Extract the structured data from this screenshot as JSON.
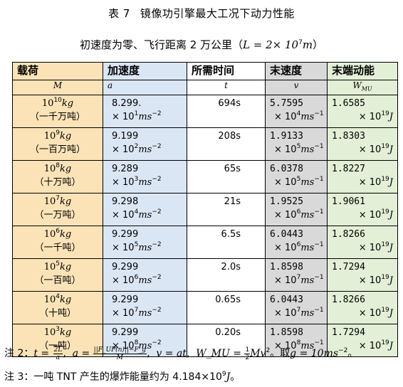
{
  "title": {
    "number": "表 7",
    "text": "镜像功引擎最大工况下动力性能"
  },
  "subtitle": "初速度为零、飞行距离 2 万公里（",
  "subtitle_formula": "L = 2× 10",
  "subtitle_exp": "7",
  "subtitle_unit": "m",
  "subtitle_end": "）",
  "headers": [
    {
      "label": "载荷",
      "symbol": "M"
    },
    {
      "label": "加速度",
      "symbol": "a"
    },
    {
      "label": "所需时间",
      "symbol": "t"
    },
    {
      "label": "末速度",
      "symbol": "v"
    },
    {
      "label": "末端动能",
      "symbol": "W",
      "symbol_sub": "MU"
    }
  ],
  "rows": [
    {
      "mass_exp": "10",
      "mass_cn": "（一千万吨）",
      "acc": "8.299.",
      "acc_exp": "1",
      "time": "694s",
      "v": "5.7595",
      "v_exp": "4",
      "w": "1.6585",
      "w_exp": "19"
    },
    {
      "mass_exp": "9",
      "mass_cn": "（一百万吨）",
      "acc": "9.199",
      "acc_exp": "2",
      "time": "208s",
      "v": "1.9133",
      "v_exp": "5",
      "w": "1.8303",
      "w_exp": "19"
    },
    {
      "mass_exp": "8",
      "mass_cn": "（十万吨）",
      "acc": "9.289",
      "acc_exp": "3",
      "time": "65s",
      "v": "6.0378",
      "v_exp": "5",
      "w": "1.8227",
      "w_exp": "19"
    },
    {
      "mass_exp": "7",
      "mass_cn": "（一万吨）",
      "acc": "9.298",
      "acc_exp": "4",
      "time": "21s",
      "v": "1.9525",
      "v_exp": "6",
      "w": "1.9061",
      "w_exp": "19"
    },
    {
      "mass_exp": "6",
      "mass_cn": "（一千吨）",
      "acc": "9.299",
      "acc_exp": "5",
      "time": "6.5s",
      "v": "6.0443",
      "v_exp": "6",
      "w": "1.8266",
      "w_exp": "19"
    },
    {
      "mass_exp": "5",
      "mass_cn": "（一百吨）",
      "acc": "9.299",
      "acc_exp": "6",
      "time": "2.0s",
      "v": "1.8598",
      "v_exp": "7",
      "w": "1.7294",
      "w_exp": "19"
    },
    {
      "mass_exp": "4",
      "mass_cn": "（十吨）",
      "acc": "9.299",
      "acc_exp": "7",
      "time": "0.65s",
      "v": "6.0443",
      "v_exp": "7",
      "w": "1.8266",
      "w_exp": "19"
    },
    {
      "mass_exp": "3",
      "mass_cn": "（一吨）",
      "acc": "9.299",
      "acc_exp": "8",
      "time": "0.20s",
      "v": "1.8598",
      "v_exp": "8",
      "w": "1.7294",
      "w_exp": "19"
    }
  ],
  "units": {
    "mass": "kg",
    "acc_prefix": "× 10",
    "acc_unit": "ms",
    "acc_unit_exp": "−2",
    "v_prefix": "× 10",
    "v_unit": "ms",
    "v_unit_exp": "−1",
    "w_prefix": "× 10",
    "w_unit": "J"
  },
  "note2": {
    "label": "注 2：",
    "t_eq": "t = ",
    "t_frac_top": "2L",
    "t_frac_bot": "a",
    "a_eq": "a = ",
    "a_frac_top": "||F_UP(n)||−F_g",
    "a_frac_bot": "M",
    "v_eq": "v = at,",
    "w_eq": "W_MU = ",
    "w_frac_top": "1",
    "w_frac_bot": "2",
    "w_tail": "Mv",
    "w_tail_exp": "2",
    "g_text": "。取",
    "g_eq": "g = 10ms",
    "g_exp": "−2",
    "end": "。"
  },
  "note3": {
    "text": "注 3：一吨 TNT 产生的爆炸能量约为 4.184×10",
    "exp": "9",
    "unit": "J",
    "end": "。"
  }
}
